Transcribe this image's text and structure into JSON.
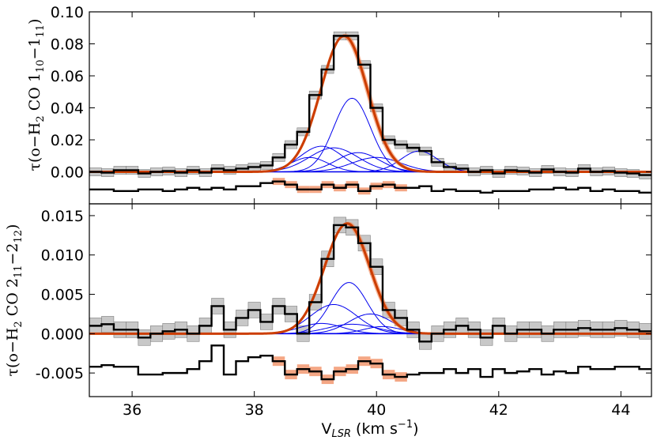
{
  "chart_data": [
    {
      "type": "line",
      "panel": "top",
      "ylabel": {
        "prefix": "τ(o−H",
        "sub1": "2",
        "mid": " CO 1",
        "sub2": "10",
        "dash": "−1",
        "sub3": "11",
        "suffix": ")"
      },
      "xlim": [
        35.3,
        44.5
      ],
      "ylim": [
        -0.02,
        0.1
      ],
      "yticks": [
        0.0,
        0.02,
        0.04,
        0.06,
        0.08,
        0.1
      ],
      "ytick_labels": [
        "0.00",
        "0.02",
        "0.04",
        "0.06",
        "0.08",
        "0.10"
      ],
      "grid": false,
      "colors": {
        "data": "#000000",
        "uncert": "#b0b0b0",
        "fit": "#cc3d00",
        "fit_light": "#f08a5c",
        "component": "#0000ee",
        "residual": "#000000"
      },
      "bin_edges": [
        35.3,
        35.5,
        35.7,
        35.9,
        36.1,
        36.3,
        36.5,
        36.7,
        36.9,
        37.1,
        37.3,
        37.5,
        37.7,
        37.9,
        38.1,
        38.3,
        38.5,
        38.7,
        38.9,
        39.1,
        39.3,
        39.5,
        39.7,
        39.9,
        40.1,
        40.3,
        40.5,
        40.7,
        40.9,
        41.1,
        41.3,
        41.5,
        41.7,
        41.9,
        42.1,
        42.3,
        42.5,
        42.7,
        42.9,
        43.1,
        43.3,
        43.5,
        43.7,
        43.9,
        44.1,
        44.3,
        44.5
      ],
      "spectrum": [
        0.0,
        -0.0005,
        0.001,
        0.001,
        -0.001,
        0.0,
        0.0005,
        -0.0005,
        0.001,
        -0.0005,
        0.002,
        0.001,
        0.002,
        0.003,
        0.004,
        0.009,
        0.017,
        0.025,
        0.048,
        0.064,
        0.085,
        0.085,
        0.067,
        0.04,
        0.02,
        0.017,
        0.015,
        0.013,
        0.006,
        0.003,
        0.002,
        0.0,
        0.001,
        -0.001,
        0.001,
        0.0005,
        -0.0005,
        0.0015,
        0.0,
        -0.0005,
        0.002,
        0.0,
        0.0005,
        -0.0005,
        -0.001,
        -0.002
      ],
      "uncertainty": 0.0025,
      "residual": [
        -0.011,
        -0.011,
        -0.012,
        -0.012,
        -0.011,
        -0.011,
        -0.012,
        -0.011,
        -0.01,
        -0.011,
        -0.01,
        -0.011,
        -0.009,
        -0.009,
        -0.007,
        -0.006,
        -0.008,
        -0.011,
        -0.011,
        -0.008,
        -0.01,
        -0.008,
        -0.012,
        -0.009,
        -0.008,
        -0.01,
        -0.01,
        -0.009,
        -0.012,
        -0.011,
        -0.012,
        -0.012,
        -0.013,
        -0.012,
        -0.012,
        -0.012,
        -0.011,
        -0.011,
        -0.01,
        -0.011,
        -0.01,
        -0.012,
        -0.011,
        -0.012,
        -0.012,
        -0.013
      ],
      "fit_peak": {
        "center": 39.47,
        "amplitude": 0.085,
        "sigma": 0.38
      },
      "components": [
        {
          "center": 39.6,
          "amplitude": 0.046,
          "sigma": 0.3
        },
        {
          "center": 39.1,
          "amplitude": 0.016,
          "sigma": 0.35
        },
        {
          "center": 39.3,
          "amplitude": 0.015,
          "sigma": 0.4
        },
        {
          "center": 39.7,
          "amplitude": 0.012,
          "sigma": 0.35
        },
        {
          "center": 40.7,
          "amplitude": 0.013,
          "sigma": 0.3
        },
        {
          "center": 38.9,
          "amplitude": 0.009,
          "sigma": 0.3
        },
        {
          "center": 40.0,
          "amplitude": 0.009,
          "sigma": 0.4
        }
      ]
    },
    {
      "type": "line",
      "panel": "bottom",
      "xlabel": {
        "prefix": "V",
        "sub": "LSR",
        "mid": " (km s",
        "sup": "−1",
        "suffix": ")"
      },
      "ylabel": {
        "prefix": "τ(o−H",
        "sub1": "2",
        "mid": " CO 2",
        "sub2": "11",
        "dash": "−2",
        "sub3": "12",
        "suffix": ")"
      },
      "xlim": [
        35.3,
        44.5
      ],
      "ylim": [
        -0.008,
        0.0165
      ],
      "xticks": [
        36,
        38,
        40,
        42,
        44
      ],
      "xtick_labels": [
        "36",
        "38",
        "40",
        "42",
        "44"
      ],
      "yticks": [
        -0.005,
        0.0,
        0.005,
        0.01,
        0.015
      ],
      "ytick_labels": [
        "-0.005",
        "0.000",
        "0.005",
        "0.010",
        "0.015"
      ],
      "grid": false,
      "colors": {
        "data": "#000000",
        "uncert": "#b0b0b0",
        "fit": "#cc3d00",
        "fit_light": "#f08a5c",
        "component": "#0000ee",
        "residual": "#000000"
      },
      "bin_edges": [
        35.3,
        35.5,
        35.7,
        35.9,
        36.1,
        36.3,
        36.5,
        36.7,
        36.9,
        37.1,
        37.3,
        37.5,
        37.7,
        37.9,
        38.1,
        38.3,
        38.5,
        38.7,
        38.9,
        39.1,
        39.3,
        39.5,
        39.7,
        39.9,
        40.1,
        40.3,
        40.5,
        40.7,
        40.9,
        41.1,
        41.3,
        41.5,
        41.7,
        41.9,
        42.1,
        42.3,
        42.5,
        42.7,
        42.9,
        43.1,
        43.3,
        43.5,
        43.7,
        43.9,
        44.1,
        44.3,
        44.5
      ],
      "spectrum": [
        0.001,
        0.0012,
        0.0005,
        0.0005,
        -0.0005,
        0.0,
        0.0003,
        0.0005,
        0.0,
        0.001,
        0.0035,
        0.0005,
        0.002,
        0.003,
        0.0015,
        0.0035,
        0.0025,
        0.0,
        0.004,
        0.0095,
        0.0138,
        0.0135,
        0.0115,
        0.0085,
        0.003,
        0.002,
        0.0005,
        -0.001,
        0.0,
        0.0005,
        0.001,
        0.0005,
        -0.0005,
        0.001,
        0.0,
        0.0005,
        0.0005,
        0.0,
        0.0005,
        0.0005,
        0.0007,
        0.0005,
        0.0005,
        0.0007,
        0.0005,
        0.0003
      ],
      "uncertainty": 0.001,
      "residual": [
        -0.0042,
        -0.004,
        -0.0042,
        -0.0042,
        -0.0052,
        -0.0052,
        -0.005,
        -0.005,
        -0.0045,
        -0.0035,
        -0.0015,
        -0.0052,
        -0.0035,
        -0.003,
        -0.0028,
        -0.0035,
        -0.0052,
        -0.0045,
        -0.0048,
        -0.0058,
        -0.0048,
        -0.0045,
        -0.0035,
        -0.0038,
        -0.0052,
        -0.0055,
        -0.0052,
        -0.005,
        -0.005,
        -0.0045,
        -0.005,
        -0.0045,
        -0.0055,
        -0.0045,
        -0.005,
        -0.0048,
        -0.0045,
        -0.0052,
        -0.0048,
        -0.005,
        -0.0042,
        -0.0045,
        -0.0045,
        -0.0042,
        -0.0042,
        -0.0045
      ],
      "fit_peak": {
        "center": 39.52,
        "amplitude": 0.014,
        "sigma": 0.37
      },
      "components": [
        {
          "center": 39.55,
          "amplitude": 0.0065,
          "sigma": 0.3
        },
        {
          "center": 39.3,
          "amplitude": 0.0037,
          "sigma": 0.38
        },
        {
          "center": 39.9,
          "amplitude": 0.0025,
          "sigma": 0.35
        },
        {
          "center": 39.1,
          "amplitude": 0.0013,
          "sigma": 0.35
        },
        {
          "center": 39.6,
          "amplitude": 0.0012,
          "sigma": 0.4
        },
        {
          "center": 40.1,
          "amplitude": 0.0009,
          "sigma": 0.3
        }
      ]
    }
  ]
}
